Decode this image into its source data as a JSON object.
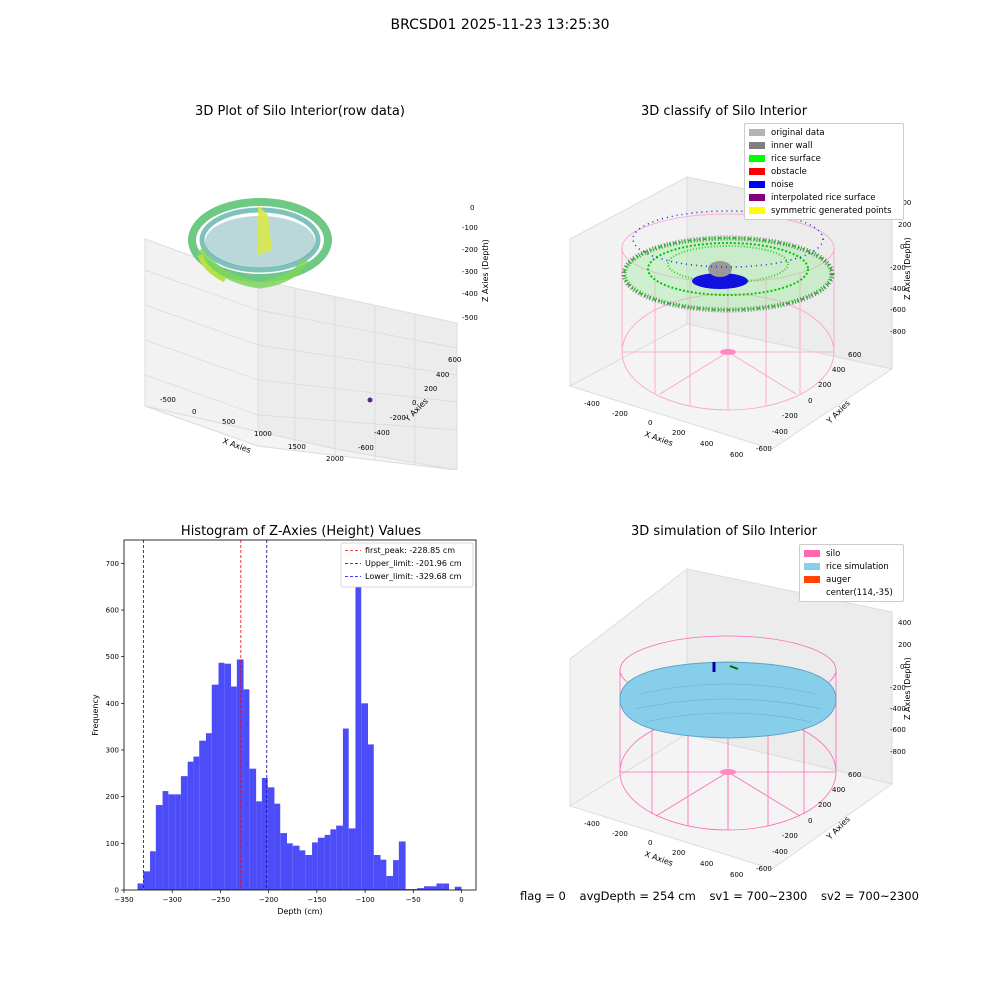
{
  "suptitle": "BRCSD01 2025-11-23 13:25:30",
  "panels": {
    "raw": {
      "title": "3D Plot of Silo Interior(row data)",
      "xlabel": "X Axies",
      "ylabel": "Y Axies",
      "zlabel": "Z Axies (Depth)",
      "xticks": [
        "-500",
        "0",
        "500",
        "1000",
        "1500",
        "2000"
      ],
      "yticks": [
        "600",
        "400",
        "200",
        "0",
        "-200",
        "-400",
        "-600"
      ],
      "zticks": [
        "0",
        "-100",
        "-200",
        "-300",
        "-400",
        "-500"
      ]
    },
    "classify": {
      "title": "3D classify of Silo Interior",
      "xlabel": "X Axies",
      "ylabel": "Y Axies",
      "zlabel": "Z Axies (Depth)",
      "xticks": [
        "-400",
        "-200",
        "0",
        "200",
        "400",
        "600"
      ],
      "yticks": [
        "600",
        "400",
        "200",
        "0",
        "-200",
        "-400",
        "-600"
      ],
      "zticks": [
        "400",
        "200",
        "0",
        "-200",
        "-400",
        "-600",
        "-800"
      ],
      "legend": [
        {
          "label": "original data",
          "color": "#b3b3b3"
        },
        {
          "label": "inner wall",
          "color": "#808080"
        },
        {
          "label": "rice surface",
          "color": "#00ff00"
        },
        {
          "label": "obstacle",
          "color": "#ff0000"
        },
        {
          "label": "noise",
          "color": "#0000ff"
        },
        {
          "label": "interpolated rice surface",
          "color": "#800080"
        },
        {
          "label": "symmetric generated points",
          "color": "#ffff00"
        }
      ]
    },
    "simulation": {
      "title": "3D simulation of Silo Interior",
      "xlabel": "X Axies",
      "ylabel": "Y Axies",
      "zlabel": "Z Axies (Depth)",
      "xticks": [
        "-400",
        "-200",
        "0",
        "200",
        "400",
        "600"
      ],
      "yticks": [
        "600",
        "400",
        "200",
        "0",
        "-200",
        "-400",
        "-600"
      ],
      "zticks": [
        "400",
        "200",
        "0",
        "-200",
        "-400",
        "-600",
        "-800"
      ],
      "legend": [
        {
          "label": "silo",
          "color": "#ff69b4"
        },
        {
          "label": "rice simulation",
          "color": "#87ceeb"
        },
        {
          "label": "auger",
          "color": "#ff4500"
        },
        {
          "label": "center(114,-35)",
          "color": "none"
        }
      ]
    }
  },
  "footer": {
    "flag": "flag = 0",
    "avg": "avgDepth = 254 cm",
    "sv1": "sv1 = 700~2300",
    "sv2": "sv2 = 700~2300"
  },
  "chart_data": {
    "type": "bar",
    "title": "Histogram of Z-Axies (Height) Values",
    "xlabel": "Depth (cm)",
    "ylabel": "Frequency",
    "xlim": [
      -350,
      15
    ],
    "ylim": [
      0,
      750
    ],
    "xticks": [
      -350,
      -300,
      -250,
      -200,
      -150,
      -100,
      -50,
      0
    ],
    "yticks": [
      0,
      100,
      200,
      300,
      400,
      500,
      600,
      700
    ],
    "bar_color": "#4848f8",
    "bins": [
      {
        "x0": -336,
        "x1": -330,
        "v": 14
      },
      {
        "x0": -330,
        "x1": -323,
        "v": 40
      },
      {
        "x0": -323,
        "x1": -317,
        "v": 83
      },
      {
        "x0": -317,
        "x1": -310,
        "v": 182
      },
      {
        "x0": -310,
        "x1": -304,
        "v": 212
      },
      {
        "x0": -304,
        "x1": -297,
        "v": 205
      },
      {
        "x0": -297,
        "x1": -291,
        "v": 205
      },
      {
        "x0": -291,
        "x1": -284,
        "v": 244
      },
      {
        "x0": -284,
        "x1": -278,
        "v": 275
      },
      {
        "x0": -278,
        "x1": -272,
        "v": 286
      },
      {
        "x0": -272,
        "x1": -265,
        "v": 320
      },
      {
        "x0": -265,
        "x1": -259,
        "v": 336
      },
      {
        "x0": -259,
        "x1": -252,
        "v": 440
      },
      {
        "x0": -252,
        "x1": -246,
        "v": 487
      },
      {
        "x0": -246,
        "x1": -239,
        "v": 485
      },
      {
        "x0": -239,
        "x1": -233,
        "v": 436
      },
      {
        "x0": -233,
        "x1": -226,
        "v": 494
      },
      {
        "x0": -226,
        "x1": -220,
        "v": 430
      },
      {
        "x0": -220,
        "x1": -213,
        "v": 260
      },
      {
        "x0": -213,
        "x1": -207,
        "v": 190
      },
      {
        "x0": -207,
        "x1": -201,
        "v": 240
      },
      {
        "x0": -201,
        "x1": -194,
        "v": 220
      },
      {
        "x0": -194,
        "x1": -188,
        "v": 185
      },
      {
        "x0": -188,
        "x1": -181,
        "v": 122
      },
      {
        "x0": -181,
        "x1": -175,
        "v": 100
      },
      {
        "x0": -175,
        "x1": -168,
        "v": 95
      },
      {
        "x0": -168,
        "x1": -162,
        "v": 85
      },
      {
        "x0": -162,
        "x1": -155,
        "v": 75
      },
      {
        "x0": -155,
        "x1": -149,
        "v": 102
      },
      {
        "x0": -149,
        "x1": -142,
        "v": 112
      },
      {
        "x0": -142,
        "x1": -136,
        "v": 118
      },
      {
        "x0": -136,
        "x1": -130,
        "v": 130
      },
      {
        "x0": -130,
        "x1": -123,
        "v": 138
      },
      {
        "x0": -123,
        "x1": -117,
        "v": 346
      },
      {
        "x0": -117,
        "x1": -110,
        "v": 132
      },
      {
        "x0": -110,
        "x1": -104,
        "v": 715
      },
      {
        "x0": -104,
        "x1": -97,
        "v": 400
      },
      {
        "x0": -97,
        "x1": -91,
        "v": 312
      },
      {
        "x0": -91,
        "x1": -84,
        "v": 75
      },
      {
        "x0": -84,
        "x1": -78,
        "v": 65
      },
      {
        "x0": -78,
        "x1": -71,
        "v": 30
      },
      {
        "x0": -71,
        "x1": -65,
        "v": 64
      },
      {
        "x0": -65,
        "x1": -58,
        "v": 104
      },
      {
        "x0": -58,
        "x1": -52,
        "v": 2
      },
      {
        "x0": -52,
        "x1": -46,
        "v": 2
      },
      {
        "x0": -46,
        "x1": -39,
        "v": 4
      },
      {
        "x0": -39,
        "x1": -33,
        "v": 8
      },
      {
        "x0": -33,
        "x1": -26,
        "v": 8
      },
      {
        "x0": -26,
        "x1": -20,
        "v": 14
      },
      {
        "x0": -20,
        "x1": -13,
        "v": 14
      },
      {
        "x0": -13,
        "x1": -7,
        "v": 0
      },
      {
        "x0": -7,
        "x1": 0,
        "v": 7
      }
    ],
    "vlines": [
      {
        "label": "first_peak: -228.85 cm",
        "x": -228.85,
        "color": "#ff0000"
      },
      {
        "label": "Upper_limit: -201.96 cm",
        "x": -201.96,
        "color": "#00008b"
      },
      {
        "label": "Lower_limit: -329.68 cm",
        "x": -329.68,
        "color": "#0000ff"
      }
    ],
    "legend_position": "upper right"
  }
}
